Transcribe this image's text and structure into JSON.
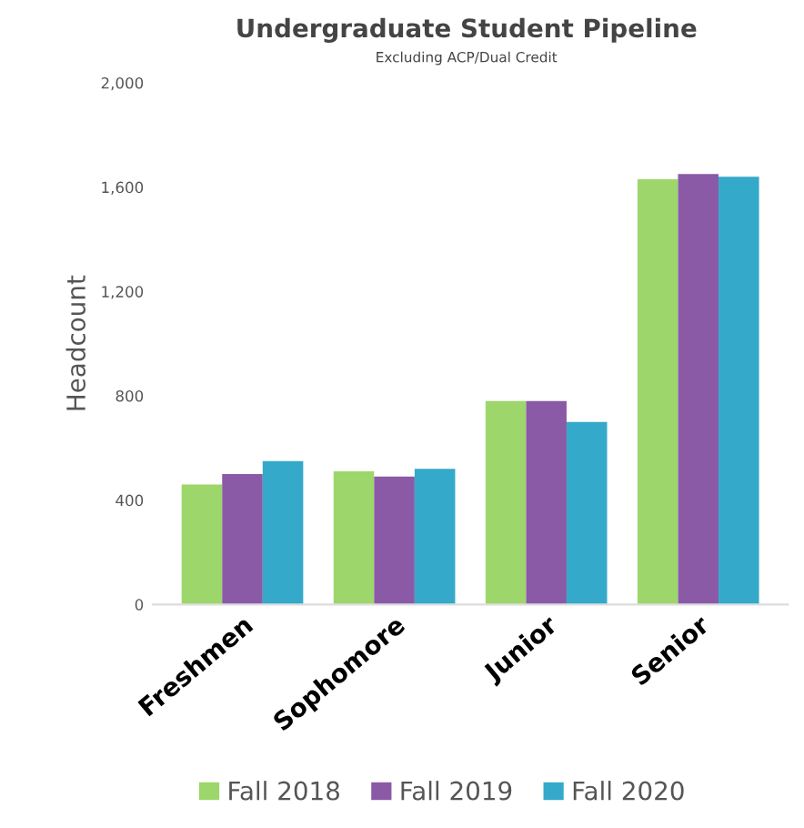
{
  "chart_data": {
    "type": "bar",
    "title": "Undergraduate Student Pipeline",
    "subtitle": "Excluding ACP/Dual Credit",
    "ylabel": "Headcount",
    "categories": [
      "Freshmen",
      "Sophomore",
      "Junior",
      "Senior"
    ],
    "series": [
      {
        "name": "Fall 2018",
        "color": "#9dd66b",
        "values": [
          460,
          510,
          780,
          1630
        ]
      },
      {
        "name": "Fall 2019",
        "color": "#8a5aa6",
        "values": [
          500,
          490,
          780,
          1650
        ]
      },
      {
        "name": "Fall 2020",
        "color": "#35a9c9",
        "values": [
          550,
          520,
          700,
          1640
        ]
      }
    ],
    "ylim": [
      0,
      2000
    ],
    "yticks": [
      {
        "value": 0,
        "label": "0"
      },
      {
        "value": 400,
        "label": "400"
      },
      {
        "value": 800,
        "label": "800"
      },
      {
        "value": 1200,
        "label": "1,200"
      },
      {
        "value": 1600,
        "label": "1,600"
      },
      {
        "value": 2000,
        "label": "2,000"
      }
    ],
    "grid": false,
    "legend": "bottom"
  }
}
